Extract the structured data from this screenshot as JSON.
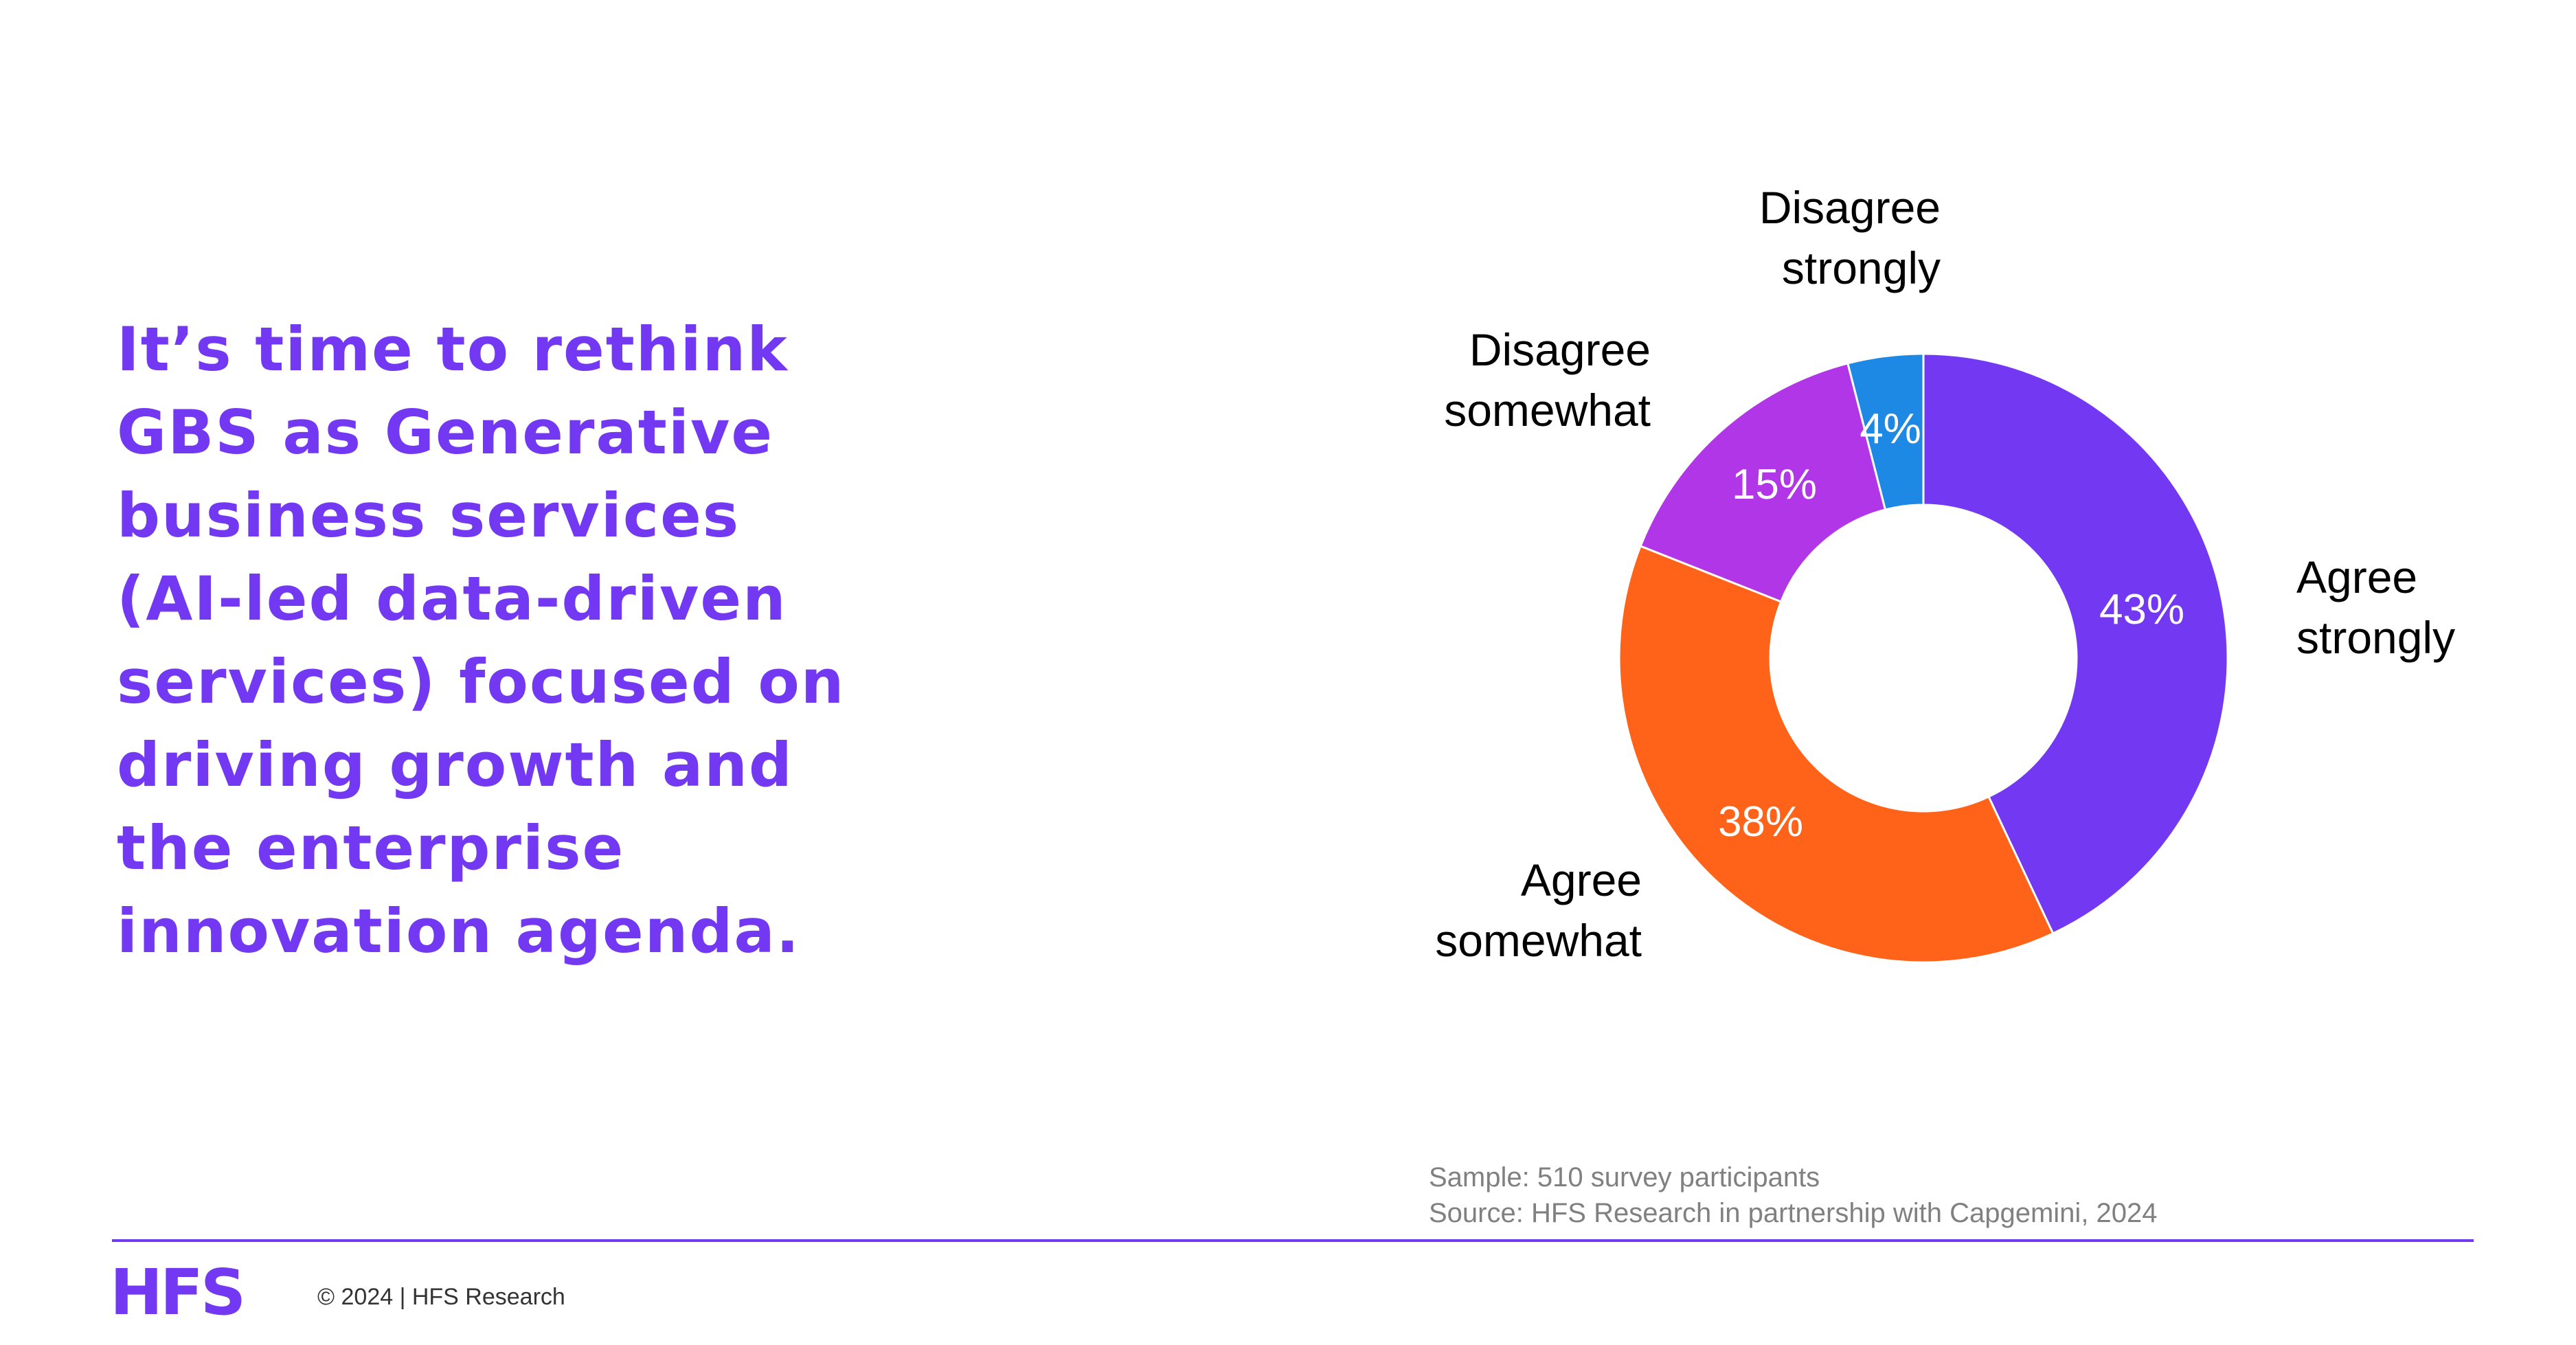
{
  "headline": [
    "It’s time to rethink",
    "GBS as Generative",
    "business services",
    "(AI-led data-driven",
    "services) focused on",
    "driving growth and",
    "the enterprise",
    "innovation agenda."
  ],
  "chart_data": {
    "type": "pie",
    "variant": "donut",
    "categories": [
      "Agree strongly",
      "Agree somewhat",
      "Disagree somewhat",
      "Disagree strongly"
    ],
    "values": [
      43,
      38,
      15,
      4
    ],
    "value_labels": [
      "43%",
      "38%",
      "15%",
      "4%"
    ],
    "label_lines": [
      [
        "Agree",
        "strongly"
      ],
      [
        "Agree",
        "somewhat"
      ],
      [
        "Disagree",
        "somewhat"
      ],
      [
        "Disagree",
        "strongly"
      ]
    ],
    "colors": [
      "#7339F2",
      "#FF6319",
      "#B136E8",
      "#1E88E5"
    ],
    "start": "12 o'clock",
    "direction": "clockwise"
  },
  "notes": {
    "sample": "Sample: 510 survey participants",
    "source": "Source: HFS Research in partnership with Capgemini, 2024"
  },
  "footer": {
    "logo": "HFS",
    "copyright": "© 2024 | HFS Research"
  }
}
